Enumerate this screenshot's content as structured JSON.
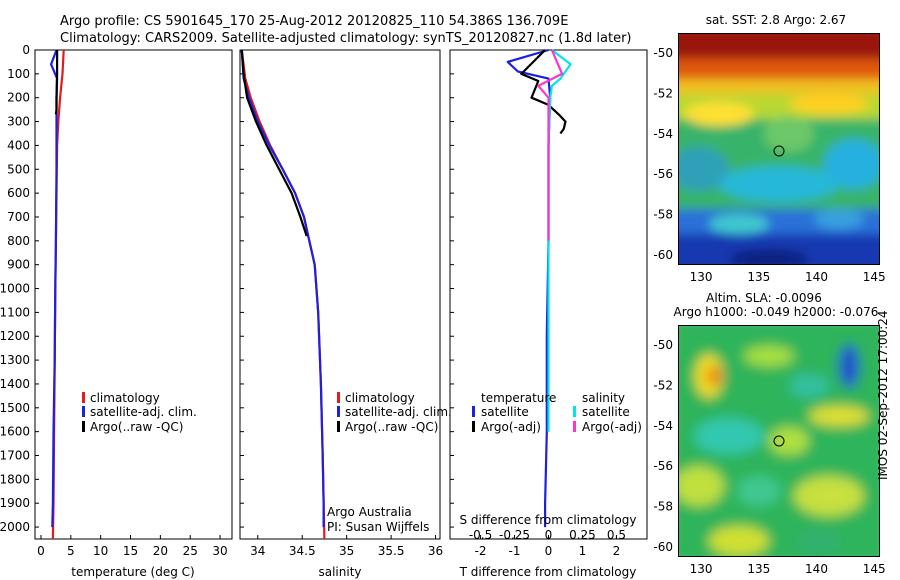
{
  "title_line1": "Argo profile: CS 5901645_170 25-Aug-2012 20120825_110 54.386S 136.709E",
  "title_line2": "Climatology: CARS2009. Satellite-adjusted climatology: synTS_20120827.nc (1.8d later)",
  "colors": {
    "red": "#e41a1c",
    "blue": "#1f1fe0",
    "black": "#000000",
    "cyan": "#00e5e5",
    "magenta": "#ff33cc"
  },
  "depth_ticks": [
    "0",
    "100",
    "200",
    "300",
    "400",
    "500",
    "600",
    "700",
    "800",
    "900",
    "1000",
    "1100",
    "1200",
    "1300",
    "1400",
    "1500",
    "1600",
    "1700",
    "1800",
    "1900",
    "2000"
  ],
  "panel_temp": {
    "xlabel": "temperature (deg C)",
    "xticks": [
      "0",
      "5",
      "10",
      "15",
      "20",
      "25",
      "30"
    ],
    "legend": [
      "climatology",
      "satellite-adj. clim.",
      "Argo(..raw -QC)"
    ]
  },
  "panel_sal": {
    "xlabel": "salinity",
    "xticks": [
      "34",
      "34.5",
      "35",
      "35.5",
      "36"
    ],
    "legend": [
      "climatology",
      "satellite-adj. clim.",
      "Argo(..raw -QC)"
    ],
    "note1": "Argo Australia",
    "note2": "PI: Susan Wijffels"
  },
  "panel_diff": {
    "xlabel": "T difference from climatology",
    "top_xlabel": "S difference from climatology",
    "xticks_T": [
      "-2",
      "-1",
      "0",
      "1",
      "2"
    ],
    "xticks_S": [
      "-0.5",
      "-0.25",
      "0",
      "0.25",
      "0.5"
    ],
    "legend_T_title": "temperature",
    "legend_T": [
      "satellite",
      "Argo(-adj)"
    ],
    "legend_S_title": "salinity",
    "legend_S": [
      "satellite",
      "Argo(-adj)"
    ]
  },
  "map_sst": {
    "title": "sat. SST: 2.8 Argo: 2.67",
    "yticks": [
      "-50",
      "-52",
      "-54",
      "-56",
      "-58",
      "-60"
    ],
    "xticks": [
      "130",
      "135",
      "140",
      "145"
    ]
  },
  "map_sla": {
    "title1": "Altim. SLA: -0.0096",
    "title2": "Argo h1000: -0.049 h2000: -0.076",
    "yticks": [
      "-50",
      "-52",
      "-54",
      "-56",
      "-58",
      "-60"
    ],
    "xticks": [
      "130",
      "135",
      "140",
      "145"
    ]
  },
  "side_label": "IMOS 02-Sep-2012 17:00:24",
  "chart_data": [
    {
      "type": "line",
      "name": "temperature profile",
      "xlabel": "temperature (deg C)",
      "ylabel": "",
      "xlim": [
        -1,
        32
      ],
      "ylim": [
        2050,
        0
      ],
      "series": [
        {
          "name": "climatology",
          "color": "red",
          "x": [
            3.8,
            3.6,
            3.2,
            2.9,
            2.7,
            2.6,
            2.5,
            2.4,
            2.3,
            2.2,
            2.1,
            2.0
          ],
          "y": [
            0,
            100,
            200,
            300,
            400,
            600,
            800,
            1000,
            1300,
            1600,
            1900,
            2050
          ]
        },
        {
          "name": "satellite-adj. clim.",
          "color": "blue",
          "x": [
            2.6,
            1.7,
            2.7,
            2.6,
            2.6,
            2.6,
            2.5,
            2.4,
            2.3,
            2.1,
            2.0,
            1.9
          ],
          "y": [
            0,
            60,
            120,
            200,
            300,
            500,
            800,
            1000,
            1300,
            1600,
            1900,
            2000
          ]
        },
        {
          "name": "Argo(..raw -QC)",
          "color": "black",
          "x": [
            2.7,
            2.7,
            2.6,
            2.6,
            2.5
          ],
          "y": [
            0,
            100,
            200,
            250,
            270
          ]
        }
      ]
    },
    {
      "type": "line",
      "name": "salinity profile",
      "xlabel": "salinity",
      "ylabel": "",
      "xlim": [
        33.8,
        36.05
      ],
      "ylim": [
        2050,
        0
      ],
      "series": [
        {
          "name": "climatology",
          "color": "red",
          "x": [
            33.82,
            33.86,
            33.92,
            34.02,
            34.14,
            34.28,
            34.42,
            34.52,
            34.58,
            34.64,
            34.68,
            34.71,
            34.73,
            34.75
          ],
          "y": [
            0,
            120,
            200,
            300,
            400,
            500,
            600,
            700,
            800,
            900,
            1100,
            1400,
            1700,
            2050
          ]
        },
        {
          "name": "satellite-adj. clim.",
          "color": "blue",
          "x": [
            33.82,
            33.84,
            33.9,
            34.0,
            34.13,
            34.28,
            34.42,
            34.52,
            34.58,
            34.64,
            34.68,
            34.71,
            34.73,
            34.74,
            34.74
          ],
          "y": [
            0,
            120,
            200,
            300,
            400,
            500,
            600,
            700,
            800,
            900,
            1100,
            1400,
            1700,
            1900,
            2000
          ]
        },
        {
          "name": "Argo(..raw -QC)",
          "color": "black",
          "x": [
            33.82,
            33.84,
            33.88,
            33.98,
            34.1,
            34.24,
            34.38,
            34.48,
            34.55
          ],
          "y": [
            0,
            100,
            200,
            300,
            400,
            500,
            600,
            700,
            780
          ]
        }
      ]
    },
    {
      "type": "line",
      "name": "difference from climatology",
      "xlabel": "T difference from climatology",
      "x2label": "S difference from climatology",
      "xlim": [
        -2.9,
        2.9
      ],
      "ylim": [
        2050,
        0
      ],
      "series": [
        {
          "name": "temperature satellite",
          "color": "blue",
          "x": [
            0.0,
            -1.2,
            -0.9,
            0.0,
            0.05,
            0.0,
            0.0,
            -0.05,
            -0.05,
            -0.1,
            -0.1
          ],
          "y": [
            0,
            50,
            90,
            120,
            200,
            400,
            800,
            1200,
            1600,
            1900,
            2000
          ]
        },
        {
          "name": "temperature Argo(-adj)",
          "color": "black",
          "x": [
            -0.1,
            -0.8,
            -0.3,
            -0.5,
            0.0,
            0.3,
            0.5,
            0.45,
            0.35
          ],
          "y": [
            0,
            100,
            130,
            200,
            230,
            270,
            300,
            330,
            350
          ]
        },
        {
          "name": "salinity satellite",
          "color": "cyan",
          "x": [
            0.1,
            0.65,
            0.35,
            0.1,
            0.05,
            0.0,
            0.0,
            0.0,
            0.0
          ],
          "y": [
            0,
            60,
            120,
            150,
            200,
            400,
            800,
            1200,
            1600
          ]
        },
        {
          "name": "salinity Argo(-adj)",
          "color": "magenta",
          "x": [
            0.1,
            0.4,
            -0.3,
            0.0,
            0.0,
            0.0,
            0.0
          ],
          "y": [
            0,
            100,
            150,
            200,
            300,
            500,
            800
          ]
        }
      ]
    }
  ]
}
